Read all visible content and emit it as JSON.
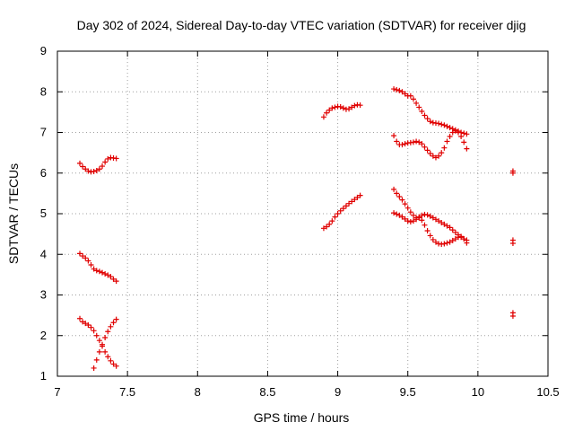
{
  "chart_data": {
    "type": "scatter",
    "title": "Day 302 of 2024, Sidereal Day-to-day VTEC variation (SDTVAR) for receiver djig",
    "xlabel": "GPS time / hours",
    "ylabel": "SDTVAR / TECUs",
    "xlim": [
      7,
      10.5
    ],
    "ylim": [
      1,
      9
    ],
    "xticks": [
      "7",
      "7.5",
      "8",
      "8.5",
      "9",
      "9.5",
      "10",
      "10.5"
    ],
    "yticks": [
      "1",
      "2",
      "3",
      "4",
      "5",
      "6",
      "7",
      "8",
      "9"
    ],
    "grid": true,
    "marker": "+",
    "color": "#e00000",
    "series": [
      {
        "name": "arc-7-upper",
        "x": [
          7.16,
          7.18,
          7.2,
          7.22,
          7.24,
          7.26,
          7.28,
          7.3,
          7.32,
          7.34,
          7.36,
          7.38,
          7.4,
          7.42
        ],
        "y": [
          6.24,
          6.16,
          6.1,
          6.05,
          6.03,
          6.04,
          6.06,
          6.1,
          6.17,
          6.27,
          6.35,
          6.38,
          6.37,
          6.36
        ]
      },
      {
        "name": "arc-7-mid",
        "x": [
          7.16,
          7.18,
          7.2,
          7.22,
          7.24,
          7.26,
          7.28,
          7.3,
          7.32,
          7.34,
          7.36,
          7.38,
          7.4,
          7.42
        ],
        "y": [
          4.02,
          3.96,
          3.91,
          3.84,
          3.74,
          3.64,
          3.6,
          3.58,
          3.55,
          3.52,
          3.49,
          3.45,
          3.39,
          3.34
        ]
      },
      {
        "name": "arc-7-low-a",
        "x": [
          7.16,
          7.18,
          7.2,
          7.22,
          7.24,
          7.26,
          7.28,
          7.3,
          7.32,
          7.34,
          7.36,
          7.38,
          7.4,
          7.42
        ],
        "y": [
          2.42,
          2.34,
          2.3,
          2.26,
          2.2,
          2.12,
          2.0,
          1.88,
          1.74,
          1.6,
          1.48,
          1.38,
          1.3,
          1.25
        ]
      },
      {
        "name": "arc-7-low-b",
        "x": [
          7.26,
          7.28,
          7.3,
          7.32,
          7.34,
          7.36,
          7.38,
          7.4,
          7.42
        ],
        "y": [
          1.2,
          1.4,
          1.6,
          1.78,
          1.95,
          2.1,
          2.22,
          2.32,
          2.4
        ]
      },
      {
        "name": "arc-9-upper",
        "x": [
          8.9,
          8.92,
          8.94,
          8.96,
          8.98,
          9.0,
          9.02,
          9.04,
          9.06,
          9.08,
          9.1,
          9.12,
          9.14,
          9.16
        ],
        "y": [
          7.38,
          7.48,
          7.55,
          7.6,
          7.62,
          7.64,
          7.63,
          7.6,
          7.57,
          7.58,
          7.62,
          7.66,
          7.68,
          7.67
        ]
      },
      {
        "name": "arc-9-lower",
        "x": [
          8.9,
          8.92,
          8.94,
          8.96,
          8.98,
          9.0,
          9.02,
          9.04,
          9.06,
          9.08,
          9.1,
          9.12,
          9.14,
          9.16
        ],
        "y": [
          4.64,
          4.68,
          4.74,
          4.82,
          4.92,
          5.0,
          5.07,
          5.13,
          5.19,
          5.25,
          5.3,
          5.35,
          5.4,
          5.45
        ]
      },
      {
        "name": "arc-9.4-top",
        "x": [
          9.4,
          9.42,
          9.44,
          9.46,
          9.48,
          9.5,
          9.52,
          9.54,
          9.56,
          9.58,
          9.6,
          9.62,
          9.64,
          9.66,
          9.68,
          9.7,
          9.72,
          9.74,
          9.76,
          9.78,
          9.8,
          9.82,
          9.84,
          9.86,
          9.88,
          9.9,
          9.92
        ],
        "y": [
          8.07,
          8.05,
          8.03,
          8.0,
          7.95,
          7.9,
          7.9,
          7.82,
          7.72,
          7.62,
          7.52,
          7.42,
          7.34,
          7.27,
          7.24,
          7.23,
          7.22,
          7.2,
          7.18,
          7.15,
          7.12,
          7.09,
          7.06,
          7.03,
          7.0,
          6.98,
          6.96
        ]
      },
      {
        "name": "arc-9.4-mid",
        "x": [
          9.4,
          9.42,
          9.44,
          9.46,
          9.48,
          9.5,
          9.52,
          9.54,
          9.56,
          9.58,
          9.6,
          9.62,
          9.64,
          9.66,
          9.68,
          9.7,
          9.72,
          9.74,
          9.76,
          9.78,
          9.8,
          9.82,
          9.84,
          9.86,
          9.88,
          9.9,
          9.92
        ],
        "y": [
          6.92,
          6.78,
          6.7,
          6.7,
          6.72,
          6.74,
          6.75,
          6.76,
          6.78,
          6.76,
          6.72,
          6.64,
          6.56,
          6.48,
          6.42,
          6.38,
          6.42,
          6.5,
          6.62,
          6.78,
          6.9,
          7.0,
          7.04,
          7.0,
          6.9,
          6.76,
          6.6
        ]
      },
      {
        "name": "arc-9.4-lower-a",
        "x": [
          9.4,
          9.42,
          9.44,
          9.46,
          9.48,
          9.5,
          9.52,
          9.54,
          9.56,
          9.58,
          9.6,
          9.62,
          9.64,
          9.66,
          9.68,
          9.7,
          9.72,
          9.74,
          9.76,
          9.78,
          9.8,
          9.82,
          9.84,
          9.86,
          9.88,
          9.9,
          9.92
        ],
        "y": [
          5.6,
          5.5,
          5.42,
          5.34,
          5.24,
          5.14,
          5.04,
          4.96,
          4.9,
          4.92,
          4.96,
          4.98,
          4.97,
          4.94,
          4.9,
          4.86,
          4.82,
          4.78,
          4.74,
          4.7,
          4.66,
          4.6,
          4.54,
          4.48,
          4.42,
          4.38,
          4.35
        ]
      },
      {
        "name": "arc-9.4-lower-b",
        "x": [
          9.4,
          9.42,
          9.44,
          9.46,
          9.48,
          9.5,
          9.52,
          9.54,
          9.56,
          9.58,
          9.6,
          9.62,
          9.64,
          9.66,
          9.68,
          9.7,
          9.72,
          9.74,
          9.76,
          9.78,
          9.8,
          9.82,
          9.84,
          9.86,
          9.88,
          9.9,
          9.92
        ],
        "y": [
          5.02,
          4.99,
          4.96,
          4.92,
          4.87,
          4.82,
          4.8,
          4.82,
          4.86,
          4.9,
          4.84,
          4.72,
          4.58,
          4.46,
          4.36,
          4.3,
          4.26,
          4.25,
          4.26,
          4.28,
          4.3,
          4.34,
          4.38,
          4.42,
          4.44,
          4.38,
          4.28
        ]
      },
      {
        "name": "arc-10.25",
        "x": [
          10.25,
          10.25,
          10.25,
          10.25,
          10.25,
          10.25
        ],
        "y": [
          6.05,
          6.0,
          4.35,
          4.27,
          2.56,
          2.48
        ]
      }
    ]
  }
}
